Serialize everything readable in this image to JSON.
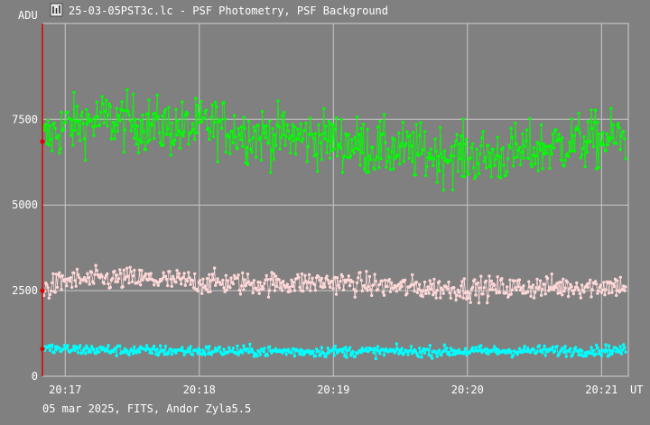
{
  "window": {
    "title": "25-03-05PST3c.lc - PSF Photometry, PSF Background",
    "icon": "chart-icon"
  },
  "footer": {
    "text": "05 mar 2025, FITS, Andor Zyla5.5"
  },
  "chart_data": {
    "type": "scatter",
    "title": "",
    "xlabel": "UT",
    "ylabel": "ADU",
    "x_ticks": [
      "20:17",
      "20:18",
      "20:19",
      "20:20",
      "20:21"
    ],
    "x_tick_minutes": [
      17,
      18,
      19,
      20,
      21
    ],
    "xlim_minutes": [
      16.83,
      21.2
    ],
    "y_ticks": [
      "0",
      "2500",
      "5000",
      "7500"
    ],
    "y_tick_values": [
      0,
      2500,
      5000,
      7500
    ],
    "ylim": [
      0,
      10300
    ],
    "grid": true,
    "marker_minute": 16.83,
    "series": [
      {
        "color": "#00ff00",
        "trend": [
          [
            16.83,
            6850
          ],
          [
            17.0,
            7300
          ],
          [
            17.3,
            7500
          ],
          [
            17.6,
            7350
          ],
          [
            17.9,
            7200
          ],
          [
            18.1,
            7350
          ],
          [
            18.4,
            7050
          ],
          [
            18.7,
            7000
          ],
          [
            19.0,
            6900
          ],
          [
            19.3,
            6650
          ],
          [
            19.6,
            6550
          ],
          [
            19.9,
            6450
          ],
          [
            20.2,
            6400
          ],
          [
            20.5,
            6600
          ],
          [
            20.8,
            6850
          ],
          [
            21.18,
            6950
          ]
        ],
        "noise": 420,
        "points": 560
      },
      {
        "color": "#ffd7d7",
        "trend": [
          [
            16.83,
            2500
          ],
          [
            17.0,
            2800
          ],
          [
            17.5,
            2850
          ],
          [
            18.0,
            2750
          ],
          [
            18.5,
            2700
          ],
          [
            19.0,
            2750
          ],
          [
            19.5,
            2600
          ],
          [
            20.0,
            2550
          ],
          [
            20.5,
            2600
          ],
          [
            21.18,
            2650
          ]
        ],
        "noise": 170,
        "points": 560
      },
      {
        "color": "#00ffff",
        "trend": [
          [
            16.83,
            800
          ],
          [
            17.5,
            750
          ],
          [
            18.5,
            730
          ],
          [
            19.5,
            720
          ],
          [
            20.5,
            740
          ],
          [
            21.18,
            760
          ]
        ],
        "noise": 80,
        "points": 560
      }
    ]
  }
}
